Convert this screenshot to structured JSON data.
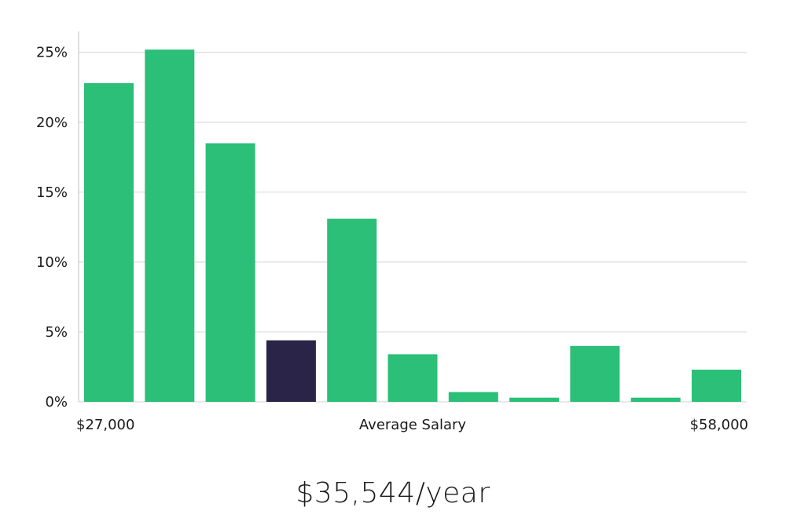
{
  "chart_data": {
    "type": "bar",
    "values": [
      22.8,
      25.2,
      18.5,
      4.4,
      13.1,
      3.4,
      0.7,
      0.3,
      4.0,
      0.3,
      2.3
    ],
    "highlight_index": 3,
    "ylim": [
      0,
      26.5
    ],
    "yticks": [
      0,
      5,
      10,
      15,
      20,
      25
    ],
    "ytick_labels": [
      "0%",
      "5%",
      "10%",
      "15%",
      "20%",
      "25%"
    ],
    "x_start_label": "$27,000",
    "x_center_label": "Average Salary",
    "x_end_label": "$58,000",
    "grid": true,
    "colors": {
      "bar": "#2bbf78",
      "highlight": "#2a2548",
      "grid": "#dddddd",
      "axis": "#cccccc"
    }
  },
  "summary": {
    "salary_text": "$35,544/year"
  }
}
